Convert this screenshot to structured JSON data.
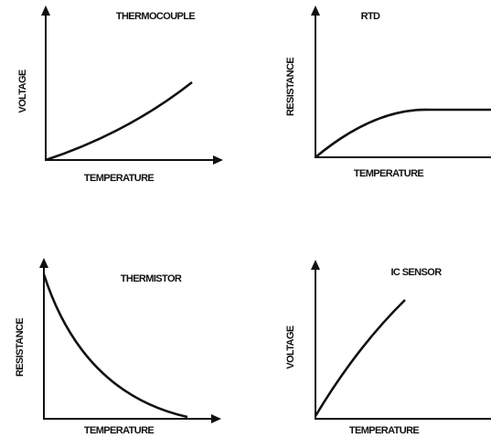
{
  "panels": [
    {
      "title": "THERMOCOUPLE",
      "y_label": "VOLTAGE",
      "x_label": "TEMPERATURE"
    },
    {
      "title": "RTD",
      "y_label": "RESISTANCE",
      "x_label": "TEMPERATURE"
    },
    {
      "title": "THERMISTOR",
      "y_label": "RESISTANCE",
      "x_label": "TEMPERATURE"
    },
    {
      "title": "IC SENSOR",
      "y_label": "VOLTAGE",
      "x_label": "TEMPERATURE"
    }
  ]
}
